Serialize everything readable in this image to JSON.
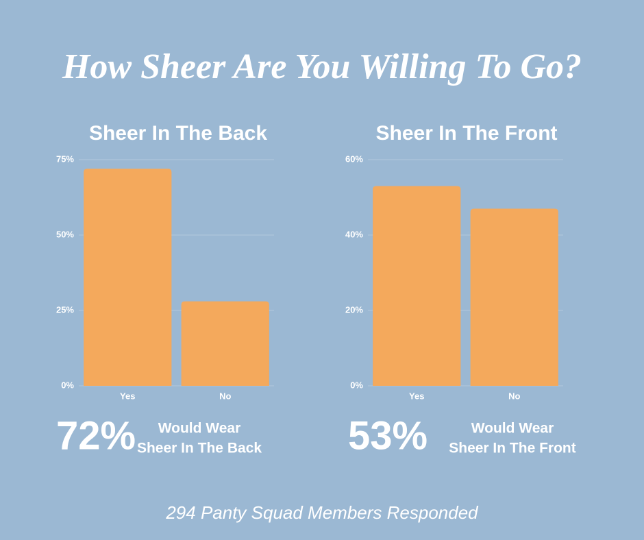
{
  "title": "How Sheer Are You Willing To Go?",
  "chart_data": [
    {
      "type": "bar",
      "title": "Sheer In The Back",
      "categories": [
        "Yes",
        "No"
      ],
      "values": [
        72,
        28
      ],
      "color": "#f4a95c",
      "ylim": [
        0,
        75
      ],
      "yticks": [
        {
          "value": 0,
          "label": "0%"
        },
        {
          "value": 25,
          "label": "25%"
        },
        {
          "value": 50,
          "label": "50%"
        },
        {
          "value": 75,
          "label": "75%"
        }
      ],
      "grid": true
    },
    {
      "type": "bar",
      "title": "Sheer In The Front",
      "categories": [
        "Yes",
        "No"
      ],
      "values": [
        53,
        47
      ],
      "color": "#f4a95c",
      "ylim": [
        0,
        60
      ],
      "yticks": [
        {
          "value": 0,
          "label": "0%"
        },
        {
          "value": 20,
          "label": "20%"
        },
        {
          "value": 40,
          "label": "40%"
        },
        {
          "value": 60,
          "label": "60%"
        }
      ],
      "grid": true
    }
  ],
  "callouts": [
    {
      "figure": "72%",
      "lines": [
        "Would Wear",
        "Sheer In The Back"
      ]
    },
    {
      "figure": "53%",
      "lines": [
        "Would Wear",
        "Sheer In The Front"
      ]
    }
  ],
  "footer": "294 Panty Squad Members Responded"
}
